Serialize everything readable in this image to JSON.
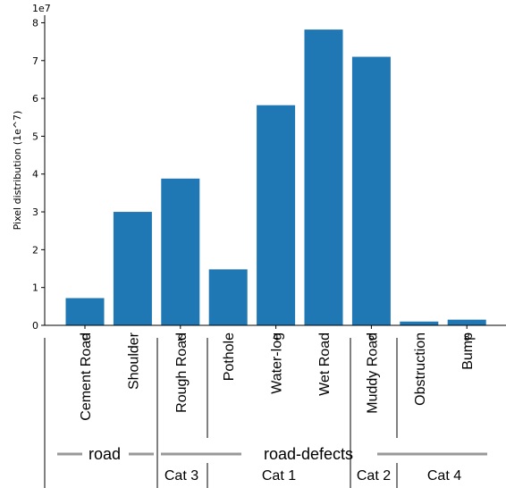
{
  "chart_data": {
    "type": "bar",
    "categories": [
      "Cement Road",
      "Shoulder",
      "Rough Road",
      "Pothole",
      "Water-log",
      "Wet Road",
      "Muddy Road",
      "Obstruction",
      "Bump"
    ],
    "values": [
      0.72,
      3.0,
      3.88,
      1.48,
      5.82,
      7.82,
      7.1,
      0.1,
      0.15
    ],
    "ylabel": "Pixel distribution (1e^7)",
    "y_multiplier": "1e7",
    "ylim": [
      0,
      8.2
    ],
    "yticks": [
      "0",
      "1",
      "2",
      "3",
      "4",
      "5",
      "6",
      "7",
      "8"
    ],
    "xticks": [
      "0",
      "2",
      "4",
      "6",
      "8"
    ],
    "bar_color": "#1f77b4",
    "groups": [
      "road",
      "road-defects"
    ],
    "subgroups": [
      "Cat 3",
      "Cat 1",
      "Cat 2",
      "Cat 4"
    ]
  }
}
